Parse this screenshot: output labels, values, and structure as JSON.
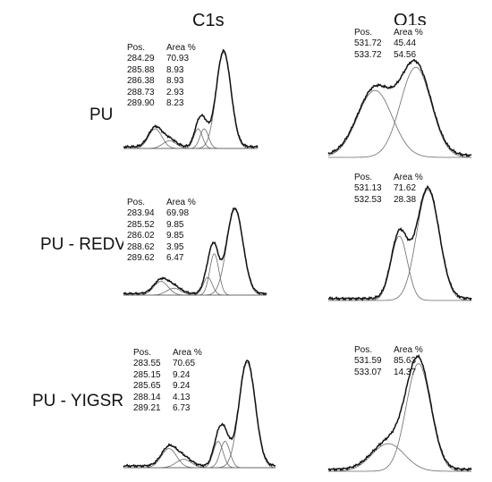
{
  "headers": {
    "c1s": "C1s",
    "o1s": "O1s"
  },
  "table_headers": {
    "pos": "Pos.",
    "area": "Area %"
  },
  "rows": [
    {
      "label": "PU",
      "c1s_table": [
        [
          "284.29",
          "70.93"
        ],
        [
          "285.88",
          "8.93"
        ],
        [
          "286.38",
          "8.93"
        ],
        [
          "288.73",
          "2.93"
        ],
        [
          "289.90",
          "8.23"
        ]
      ],
      "o1s_table": [
        [
          "531.72",
          "45.44"
        ],
        [
          "533.72",
          "54.56"
        ]
      ]
    },
    {
      "label": "PU - REDV",
      "c1s_table": [
        [
          "283.94",
          "69.98"
        ],
        [
          "285.52",
          "9.85"
        ],
        [
          "286.02",
          "9.85"
        ],
        [
          "288.62",
          "3.95"
        ],
        [
          "289.62",
          "6.47"
        ]
      ],
      "o1s_table": [
        [
          "531.13",
          "71.62"
        ],
        [
          "532.53",
          "28.38"
        ]
      ]
    },
    {
      "label": "PU - YIGSR",
      "c1s_table": [
        [
          "283.55",
          "70.65"
        ],
        [
          "285.15",
          "9.24"
        ],
        [
          "285.65",
          "9.24"
        ],
        [
          "288.14",
          "4.13"
        ],
        [
          "289.21",
          "6.73"
        ]
      ],
      "o1s_table": [
        [
          "531.59",
          "85.63"
        ],
        [
          "533.07",
          "14.37"
        ]
      ]
    }
  ],
  "chart_data": [
    {
      "type": "line",
      "title": "C1s",
      "row": "PU",
      "xlabel": "",
      "ylabel": "",
      "grid": false,
      "x_direction": "binding energy decreasing left to right",
      "xlim": [
        292.5,
        281.5
      ],
      "series": [
        {
          "x": 289.9,
          "height": 0.18,
          "width": 0.55
        },
        {
          "x": 288.73,
          "height": 0.07,
          "width": 0.55
        },
        {
          "x": 286.38,
          "height": 0.18,
          "width": 0.35
        },
        {
          "x": 285.88,
          "height": 0.18,
          "width": 0.35
        },
        {
          "x": 284.29,
          "height": 0.88,
          "width": 0.6
        }
      ]
    },
    {
      "type": "line",
      "title": "O1s",
      "row": "PU",
      "xlabel": "",
      "ylabel": "",
      "grid": false,
      "x_direction": "binding energy decreasing left to right",
      "xlim": [
        536.0,
        529.0
      ],
      "series": [
        {
          "x": 533.72,
          "height": 0.52,
          "width": 0.85
        },
        {
          "x": 531.72,
          "height": 0.7,
          "width": 0.75
        }
      ]
    },
    {
      "type": "line",
      "title": "C1s",
      "row": "PU - REDV",
      "xlabel": "",
      "ylabel": "",
      "grid": false,
      "x_direction": "binding energy decreasing left to right",
      "xlim": [
        292.5,
        281.5
      ],
      "series": [
        {
          "x": 289.62,
          "height": 0.14,
          "width": 0.55
        },
        {
          "x": 288.62,
          "height": 0.07,
          "width": 0.55
        },
        {
          "x": 286.02,
          "height": 0.18,
          "width": 0.35
        },
        {
          "x": 285.52,
          "height": 0.42,
          "width": 0.35
        },
        {
          "x": 283.94,
          "height": 0.87,
          "width": 0.62
        }
      ]
    },
    {
      "type": "line",
      "title": "O1s",
      "row": "PU - REDV",
      "xlabel": "",
      "ylabel": "",
      "grid": false,
      "x_direction": "binding energy decreasing left to right",
      "xlim": [
        536.0,
        529.0
      ],
      "series": [
        {
          "x": 532.53,
          "height": 0.5,
          "width": 0.4
        },
        {
          "x": 531.13,
          "height": 0.86,
          "width": 0.55
        }
      ]
    },
    {
      "type": "line",
      "title": "C1s",
      "row": "PU - YIGSR",
      "xlabel": "",
      "ylabel": "",
      "grid": false,
      "x_direction": "binding energy decreasing left to right",
      "xlim": [
        292.5,
        281.5
      ],
      "series": [
        {
          "x": 289.21,
          "height": 0.16,
          "width": 0.55
        },
        {
          "x": 288.14,
          "height": 0.07,
          "width": 0.55
        },
        {
          "x": 285.65,
          "height": 0.22,
          "width": 0.35
        },
        {
          "x": 285.15,
          "height": 0.22,
          "width": 0.35
        },
        {
          "x": 283.55,
          "height": 0.88,
          "width": 0.58
        }
      ]
    },
    {
      "type": "line",
      "title": "O1s",
      "row": "PU - YIGSR",
      "xlabel": "",
      "ylabel": "",
      "grid": false,
      "x_direction": "binding energy decreasing left to right",
      "xlim": [
        536.0,
        529.0
      ],
      "series": [
        {
          "x": 533.07,
          "height": 0.22,
          "width": 0.8
        },
        {
          "x": 531.59,
          "height": 0.86,
          "width": 0.6
        }
      ]
    }
  ]
}
